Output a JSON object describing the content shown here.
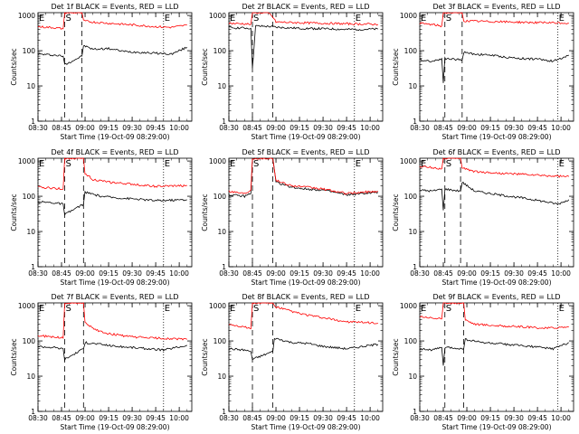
{
  "figure": {
    "common": {
      "xlabel": "Start Time (19-Oct-09 08:29:00)",
      "ylabel": "Counts/sec",
      "x_tick_labels": [
        "08:30",
        "08:45",
        "09:00",
        "09:15",
        "09:30",
        "09:45",
        "10:00"
      ],
      "y_tick_labels": [
        "1",
        "10",
        "100",
        "1000"
      ],
      "xlim": [
        "08:30",
        "10:08"
      ],
      "ylim": [
        1,
        1200
      ],
      "y_scale": "log",
      "series_colors": {
        "events": "#000000",
        "lld": "#ff0000"
      }
    }
  },
  "chart_data": [
    {
      "type": "line",
      "title": "Det 1f BLACK = Events, RED = LLD",
      "xlabel": "Start Time (19-Oct-09 08:29:00)",
      "ylabel": "Counts/sec",
      "y_scale": "log",
      "ylim": [
        1,
        1200
      ],
      "markers": [
        {
          "label": "E",
          "x": "08:30",
          "style": "dotted"
        },
        {
          "label": "S",
          "x": "08:47",
          "style": "dashed"
        },
        {
          "label": "",
          "x": "08:58",
          "style": "dashed"
        },
        {
          "label": "E",
          "x": "09:50",
          "style": "dotted"
        }
      ],
      "series": [
        {
          "color": "#000000",
          "x": [
            "08:30",
            "08:40",
            "08:46",
            "08:47",
            "08:58",
            "08:59",
            "09:05",
            "09:15",
            "09:25",
            "09:35",
            "09:45",
            "09:55",
            "10:05"
          ],
          "y": [
            80,
            75,
            70,
            40,
            70,
            140,
            110,
            115,
            95,
            90,
            85,
            80,
            125
          ]
        },
        {
          "color": "#ff0000",
          "x": [
            "08:30",
            "08:40",
            "08:46",
            "08:47",
            "08:50",
            "08:58",
            "08:59",
            "09:05",
            "09:15",
            "09:25",
            "09:35",
            "09:45",
            "09:55",
            "10:05"
          ],
          "y": [
            480,
            450,
            420,
            1200,
            1200,
            1200,
            700,
            650,
            600,
            560,
            520,
            480,
            460,
            530
          ]
        }
      ]
    },
    {
      "type": "line",
      "title": "Det 2f BLACK = Events, RED = LLD",
      "xlabel": "Start Time (19-Oct-09 08:29:00)",
      "ylabel": "Counts/sec",
      "y_scale": "log",
      "ylim": [
        1,
        1200
      ],
      "markers": [
        {
          "label": "E",
          "x": "08:30",
          "style": "dotted"
        },
        {
          "label": "S",
          "x": "08:45",
          "style": "dashed"
        },
        {
          "label": "",
          "x": "08:58",
          "style": "dashed"
        },
        {
          "label": "E",
          "x": "09:50",
          "style": "dotted"
        }
      ],
      "series": [
        {
          "color": "#000000",
          "x": [
            "08:30",
            "08:40",
            "08:44",
            "08:45",
            "08:47",
            "08:58",
            "09:00",
            "09:15",
            "09:30",
            "09:45",
            "10:05"
          ],
          "y": [
            450,
            440,
            430,
            30,
            500,
            480,
            460,
            430,
            420,
            400,
            410
          ]
        },
        {
          "color": "#ff0000",
          "x": [
            "08:30",
            "08:40",
            "08:44",
            "08:45",
            "08:50",
            "08:55",
            "08:58",
            "09:00",
            "09:15",
            "09:30",
            "09:45",
            "10:05"
          ],
          "y": [
            600,
            580,
            560,
            1200,
            1200,
            1200,
            900,
            650,
            620,
            600,
            580,
            560
          ]
        }
      ]
    },
    {
      "type": "line",
      "title": "Det 3f BLACK = Events, RED = LLD",
      "xlabel": "Start Time (19-Oct-09 08:29:00)",
      "ylabel": "Counts/sec",
      "y_scale": "log",
      "ylim": [
        1,
        1200
      ],
      "markers": [
        {
          "label": "E",
          "x": "08:30",
          "style": "dotted"
        },
        {
          "label": "S",
          "x": "08:46",
          "style": "dashed"
        },
        {
          "label": "",
          "x": "08:57",
          "style": "dashed"
        },
        {
          "label": "E",
          "x": "09:58",
          "style": "dotted"
        }
      ],
      "series": [
        {
          "color": "#000000",
          "x": [
            "08:30",
            "08:38",
            "08:44",
            "08:45",
            "08:46",
            "08:57",
            "08:58",
            "09:05",
            "09:15",
            "09:25",
            "09:35",
            "09:45",
            "09:55",
            "10:05"
          ],
          "y": [
            55,
            50,
            60,
            12,
            60,
            55,
            90,
            80,
            75,
            65,
            60,
            58,
            50,
            75
          ]
        },
        {
          "color": "#ff0000",
          "x": [
            "08:30",
            "08:38",
            "08:44",
            "08:45",
            "08:50",
            "08:57",
            "08:58",
            "09:10",
            "09:30",
            "09:50",
            "10:05"
          ],
          "y": [
            600,
            550,
            500,
            1200,
            1200,
            1200,
            700,
            680,
            650,
            620,
            600
          ]
        }
      ]
    },
    {
      "type": "line",
      "title": "Det 4f BLACK = Events, RED = LLD",
      "xlabel": "Start Time (19-Oct-09 08:29:00)",
      "ylabel": "Counts/sec",
      "y_scale": "log",
      "ylim": [
        1,
        1200
      ],
      "markers": [
        {
          "label": "E",
          "x": "08:30",
          "style": "dotted"
        },
        {
          "label": "S",
          "x": "08:47",
          "style": "dashed"
        },
        {
          "label": "",
          "x": "08:59",
          "style": "dashed"
        },
        {
          "label": "E",
          "x": "09:50",
          "style": "dotted"
        }
      ],
      "series": [
        {
          "color": "#000000",
          "x": [
            "08:30",
            "08:40",
            "08:46",
            "08:47",
            "08:59",
            "09:00",
            "09:10",
            "09:20",
            "09:30",
            "09:45",
            "10:05"
          ],
          "y": [
            70,
            65,
            60,
            30,
            60,
            130,
            100,
            90,
            85,
            75,
            80
          ]
        },
        {
          "color": "#ff0000",
          "x": [
            "08:30",
            "08:40",
            "08:46",
            "08:47",
            "08:52",
            "08:59",
            "09:00",
            "09:05",
            "09:15",
            "09:30",
            "09:45",
            "10:05"
          ],
          "y": [
            180,
            170,
            160,
            1200,
            1200,
            1200,
            450,
            300,
            250,
            220,
            190,
            200
          ]
        }
      ]
    },
    {
      "type": "line",
      "title": "Det 5f BLACK = Events, RED = LLD",
      "xlabel": "Start Time (19-Oct-09 08:29:00)",
      "ylabel": "Counts/sec",
      "y_scale": "log",
      "ylim": [
        1,
        1200
      ],
      "markers": [
        {
          "label": "E",
          "x": "08:30",
          "style": "dotted"
        },
        {
          "label": "S",
          "x": "08:45",
          "style": "dashed"
        },
        {
          "label": "",
          "x": "08:58",
          "style": "dashed"
        },
        {
          "label": "E",
          "x": "09:50",
          "style": "dotted"
        }
      ],
      "series": [
        {
          "color": "#000000",
          "x": [
            "08:30",
            "08:40",
            "08:44",
            "08:45",
            "08:50",
            "08:58",
            "09:00",
            "09:10",
            "09:20",
            "09:30",
            "09:45",
            "10:05"
          ],
          "y": [
            110,
            100,
            120,
            1200,
            1200,
            1200,
            250,
            180,
            160,
            150,
            110,
            130
          ]
        },
        {
          "color": "#ff0000",
          "x": [
            "08:30",
            "08:40",
            "08:44",
            "08:45",
            "08:50",
            "08:58",
            "09:00",
            "09:10",
            "09:20",
            "09:30",
            "09:45",
            "10:05"
          ],
          "y": [
            140,
            120,
            150,
            1200,
            1200,
            1200,
            280,
            200,
            180,
            160,
            120,
            140
          ]
        }
      ]
    },
    {
      "type": "line",
      "title": "Det 6f BLACK = Events, RED = LLD",
      "xlabel": "Start Time (19-Oct-09 08:29:00)",
      "ylabel": "Counts/sec",
      "y_scale": "log",
      "ylim": [
        1,
        1200
      ],
      "markers": [
        {
          "label": "E",
          "x": "08:30",
          "style": "dotted"
        },
        {
          "label": "S",
          "x": "08:46",
          "style": "dashed"
        },
        {
          "label": "",
          "x": "08:56",
          "style": "dashed"
        },
        {
          "label": "E",
          "x": "09:58",
          "style": "dotted"
        }
      ],
      "series": [
        {
          "color": "#000000",
          "x": [
            "08:30",
            "08:38",
            "08:44",
            "08:45",
            "08:46",
            "08:56",
            "08:57",
            "09:05",
            "09:20",
            "09:35",
            "09:50",
            "09:58",
            "10:05"
          ],
          "y": [
            150,
            140,
            160,
            40,
            160,
            140,
            250,
            140,
            110,
            90,
            70,
            60,
            80
          ]
        },
        {
          "color": "#ff0000",
          "x": [
            "08:30",
            "08:38",
            "08:44",
            "08:45",
            "08:50",
            "08:56",
            "08:57",
            "09:05",
            "09:20",
            "09:35",
            "09:50",
            "10:05"
          ],
          "y": [
            700,
            650,
            600,
            1200,
            1200,
            1200,
            650,
            500,
            450,
            420,
            380,
            360
          ]
        }
      ]
    },
    {
      "type": "line",
      "title": "Det 7f BLACK = Events, RED = LLD",
      "xlabel": "Start Time (19-Oct-09 08:29:00)",
      "ylabel": "Counts/sec",
      "y_scale": "log",
      "ylim": [
        1,
        1200
      ],
      "markers": [
        {
          "label": "E",
          "x": "08:30",
          "style": "dotted"
        },
        {
          "label": "S",
          "x": "08:47",
          "style": "dashed"
        },
        {
          "label": "",
          "x": "08:59",
          "style": "dashed"
        },
        {
          "label": "E",
          "x": "09:50",
          "style": "dotted"
        }
      ],
      "series": [
        {
          "color": "#000000",
          "x": [
            "08:30",
            "08:40",
            "08:46",
            "08:47",
            "08:59",
            "09:00",
            "09:10",
            "09:20",
            "09:30",
            "09:40",
            "09:50",
            "10:05"
          ],
          "y": [
            70,
            65,
            60,
            30,
            60,
            90,
            80,
            70,
            65,
            60,
            55,
            75
          ]
        },
        {
          "color": "#ff0000",
          "x": [
            "08:30",
            "08:40",
            "08:46",
            "08:47",
            "08:52",
            "08:59",
            "09:00",
            "09:05",
            "09:15",
            "09:30",
            "09:45",
            "10:05"
          ],
          "y": [
            140,
            130,
            120,
            1200,
            1200,
            1200,
            350,
            220,
            160,
            130,
            120,
            110
          ]
        }
      ]
    },
    {
      "type": "line",
      "title": "Det 8f BLACK = Events, RED = LLD",
      "xlabel": "Start Time (19-Oct-09 08:29:00)",
      "ylabel": "Counts/sec",
      "y_scale": "log",
      "ylim": [
        1,
        1200
      ],
      "markers": [
        {
          "label": "E",
          "x": "08:30",
          "style": "dotted"
        },
        {
          "label": "S",
          "x": "08:45",
          "style": "dashed"
        },
        {
          "label": "",
          "x": "08:58",
          "style": "dashed"
        },
        {
          "label": "E",
          "x": "09:50",
          "style": "dotted"
        }
      ],
      "series": [
        {
          "color": "#000000",
          "x": [
            "08:30",
            "08:40",
            "08:44",
            "08:45",
            "08:58",
            "08:59",
            "09:10",
            "09:20",
            "09:30",
            "09:45",
            "10:05"
          ],
          "y": [
            60,
            55,
            50,
            30,
            50,
            120,
            90,
            85,
            70,
            60,
            80
          ]
        },
        {
          "color": "#ff0000",
          "x": [
            "08:30",
            "08:40",
            "08:44",
            "08:45",
            "08:50",
            "08:58",
            "08:59",
            "09:05",
            "09:15",
            "09:30",
            "09:45",
            "10:05"
          ],
          "y": [
            300,
            250,
            220,
            1200,
            1200,
            1200,
            950,
            800,
            600,
            450,
            350,
            320
          ]
        }
      ]
    },
    {
      "type": "line",
      "title": "Det 9f BLACK = Events, RED = LLD",
      "xlabel": "Start Time (19-Oct-09 08:29:00)",
      "ylabel": "Counts/sec",
      "y_scale": "log",
      "ylim": [
        1,
        1200
      ],
      "markers": [
        {
          "label": "E",
          "x": "08:30",
          "style": "dotted"
        },
        {
          "label": "S",
          "x": "08:46",
          "style": "dashed"
        },
        {
          "label": "",
          "x": "08:58",
          "style": "dashed"
        },
        {
          "label": "E",
          "x": "09:58",
          "style": "dotted"
        }
      ],
      "series": [
        {
          "color": "#000000",
          "x": [
            "08:30",
            "08:38",
            "08:44",
            "08:45",
            "08:46",
            "08:58",
            "08:59",
            "09:10",
            "09:25",
            "09:40",
            "09:55",
            "10:05"
          ],
          "y": [
            60,
            55,
            65,
            20,
            65,
            60,
            110,
            90,
            80,
            70,
            60,
            90
          ]
        },
        {
          "color": "#ff0000",
          "x": [
            "08:30",
            "08:38",
            "08:44",
            "08:45",
            "08:50",
            "08:58",
            "08:59",
            "09:05",
            "09:20",
            "09:35",
            "09:50",
            "10:05"
          ],
          "y": [
            500,
            450,
            420,
            1200,
            1200,
            1200,
            400,
            300,
            270,
            250,
            230,
            250
          ]
        }
      ]
    }
  ]
}
